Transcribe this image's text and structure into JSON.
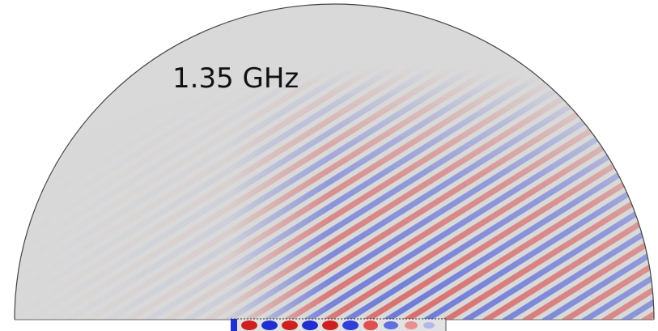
{
  "label": "1.35 GHz"
}
